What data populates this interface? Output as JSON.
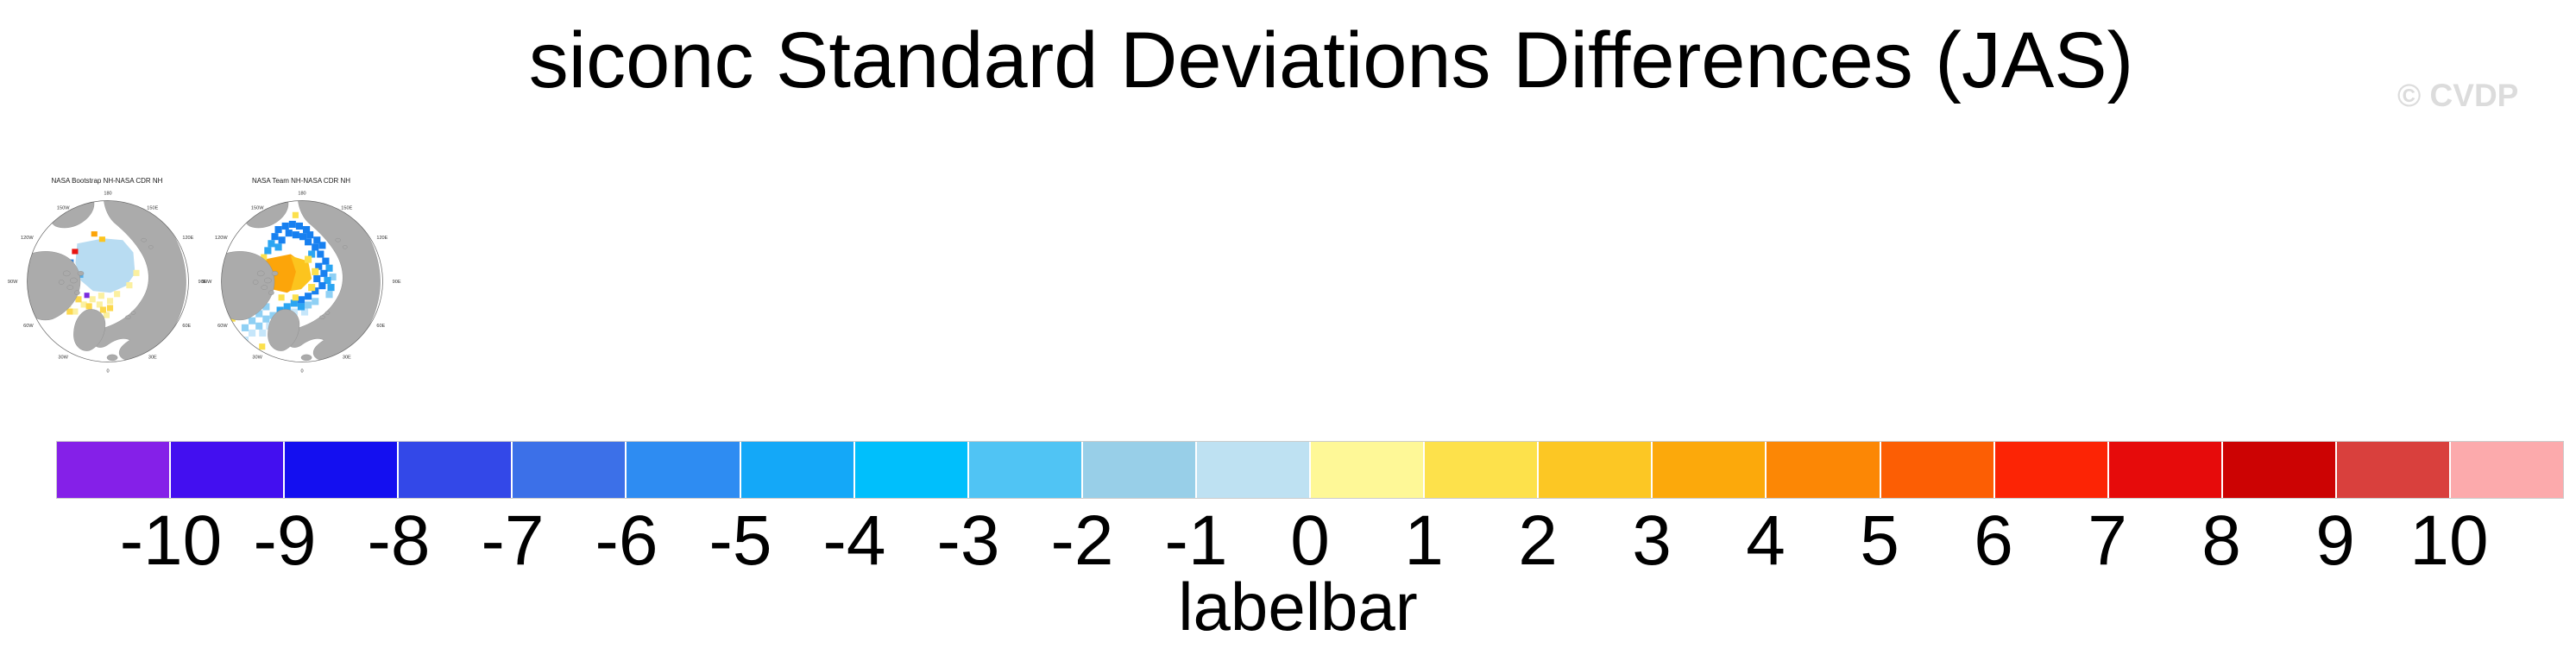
{
  "header": {
    "title": "siconc Standard Deviations Differences (JAS)",
    "watermark": "© CVDP"
  },
  "maps": {
    "panel1": {
      "title": "NASA Bootstrap NH-NASA CDR NH"
    },
    "panel2": {
      "title": "NASA Team NH-NASA CDR NH"
    },
    "lon_labels": [
      "180",
      "150W",
      "150E",
      "120W",
      "120E",
      "90W",
      "90E",
      "60W",
      "60E",
      "30W",
      "30E",
      "0"
    ]
  },
  "colorbar": {
    "label": "labelbar",
    "ticks": [
      "-10",
      "-9",
      "-8",
      "-7",
      "-6",
      "-5",
      "-4",
      "-3",
      "-2",
      "-1",
      "0",
      "1",
      "2",
      "3",
      "4",
      "5",
      "6",
      "7",
      "8",
      "9",
      "10"
    ],
    "colors": [
      "#8520E8",
      "#430FF0",
      "#140FF0",
      "#3348E8",
      "#3C70E8",
      "#2E8CF2",
      "#14A8F8",
      "#00BFFC",
      "#50C4F4",
      "#98CFE8",
      "#BEE1F2",
      "#FEF897",
      "#FDE14B",
      "#FCC724",
      "#FCA90B",
      "#FC8705",
      "#FC5E04",
      "#FC2405",
      "#E60B0B",
      "#CC0303",
      "#D9403D",
      "#FCAAAC"
    ]
  },
  "chart_data": {
    "type": "heatmap",
    "title": "siconc Standard Deviations Differences (JAS)",
    "variable": "siconc",
    "season": "JAS",
    "panels": [
      {
        "title": "NASA Bootstrap NH-NASA CDR NH",
        "projection": "north polar stereographic"
      },
      {
        "title": "NASA Team NH-NASA CDR NH",
        "projection": "north polar stereographic"
      }
    ],
    "longitude_ring_labels": [
      "0",
      "30E",
      "60E",
      "90E",
      "120E",
      "150E",
      "180",
      "150W",
      "120W",
      "90W",
      "60W",
      "30W"
    ],
    "colorbar": {
      "label": "labelbar",
      "tick_values": [
        -10,
        -9,
        -8,
        -7,
        -6,
        -5,
        -4,
        -3,
        -2,
        -1,
        0,
        1,
        2,
        3,
        4,
        5,
        6,
        7,
        8,
        9,
        10
      ],
      "n_cells": 22,
      "cell_colors": [
        "#8520E8",
        "#430FF0",
        "#140FF0",
        "#3348E8",
        "#3C70E8",
        "#2E8CF2",
        "#14A8F8",
        "#00BFFC",
        "#50C4F4",
        "#98CFE8",
        "#BEE1F2",
        "#FEF897",
        "#FDE14B",
        "#FCC724",
        "#FCA90B",
        "#FC8705",
        "#FC5E04",
        "#FC2405",
        "#E60B0B",
        "#CC0303",
        "#D9403D",
        "#FCAAAC"
      ]
    }
  }
}
